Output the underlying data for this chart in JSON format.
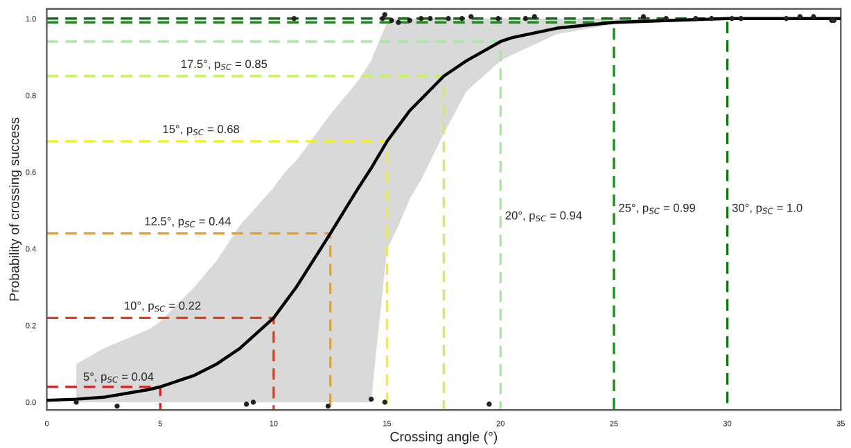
{
  "chart_data": {
    "type": "line",
    "xlabel": "Crossing angle (°)",
    "ylabel": "Probability of crossing success",
    "xlim": [
      0,
      35
    ],
    "ylim": [
      -0.02,
      1.025
    ],
    "xticks": [
      0,
      5,
      10,
      15,
      20,
      25,
      30,
      35
    ],
    "yticks": [
      {
        "value": 0,
        "label": "0.0"
      },
      {
        "value": 0.2,
        "label": "0.2"
      },
      {
        "value": 0.4,
        "label": "0.4"
      },
      {
        "value": 0.6,
        "label": "0.6"
      },
      {
        "value": 0.8,
        "label": "0.8"
      },
      {
        "value": 1,
        "label": "1.0"
      }
    ],
    "grid": false,
    "legend": false,
    "series": [
      {
        "color": "#d42020",
        "line_style": "dashed",
        "x": [
          0,
          5,
          5
        ],
        "values": [
          0.04,
          0.04,
          -0.02
        ]
      },
      {
        "color": "#e0401a",
        "line_style": "dashed",
        "x": [
          0,
          10,
          10
        ],
        "values": [
          0.22,
          0.22,
          -0.02
        ]
      },
      {
        "color": "#e8a020",
        "line_style": "dashed",
        "x": [
          0,
          12.5,
          12.5
        ],
        "values": [
          0.44,
          0.44,
          -0.02
        ]
      },
      {
        "color": "#f0f020",
        "line_style": "dashed",
        "x": [
          0,
          15,
          15
        ],
        "values": [
          0.68,
          0.68,
          -0.02
        ]
      },
      {
        "color": "#c8f060",
        "line_style": "dashed",
        "x": [
          0,
          17.5,
          17.5
        ],
        "values": [
          0.85,
          0.85,
          -0.02
        ]
      },
      {
        "color": "#a8e8a0",
        "line_style": "dashed",
        "x": [
          0,
          20,
          20
        ],
        "values": [
          0.94,
          0.94,
          -0.02
        ]
      },
      {
        "color": "#1a8a1a",
        "line_style": "dashed",
        "x": [
          0,
          25,
          25
        ],
        "values": [
          0.99,
          0.99,
          -0.02
        ]
      },
      {
        "color": "#107010",
        "line_style": "dashed",
        "x": [
          0,
          30,
          30
        ],
        "values": [
          1.0,
          1.0,
          -0.02
        ]
      },
      {
        "color": "#000000",
        "line_style": "solid",
        "x": [
          0,
          1.3,
          2.5,
          4.5,
          5,
          6.5,
          7.5,
          8.5,
          10,
          10.5,
          11,
          12.5,
          13.75,
          14.3,
          14.5,
          15,
          15.5,
          16,
          16.5,
          17.5,
          18.5,
          20,
          20.5,
          22.5,
          25,
          27.5,
          30,
          35
        ],
        "values": [
          0.005,
          0.008,
          0.013,
          0.033,
          0.04,
          0.07,
          0.1,
          0.14,
          0.22,
          0.26,
          0.3,
          0.44,
          0.56,
          0.61,
          0.63,
          0.68,
          0.72,
          0.76,
          0.79,
          0.85,
          0.89,
          0.94,
          0.95,
          0.975,
          0.99,
          0.995,
          1.0,
          1.0
        ],
        "lower": [
          null,
          0,
          0,
          0,
          0,
          0,
          0,
          0,
          0,
          0,
          0,
          0,
          0,
          0,
          0.12,
          0.4,
          0.46,
          0.53,
          0.58,
          0.7,
          0.81,
          0.89,
          0.905,
          0.96,
          0.985,
          0.992,
          0.996,
          1.0
        ],
        "upper": [
          null,
          0.1,
          0.14,
          0.19,
          0.21,
          0.3,
          0.37,
          0.46,
          0.56,
          0.6,
          0.63,
          0.75,
          0.84,
          0.89,
          0.92,
          0.99,
          1.0,
          1.0,
          1.0,
          1.0,
          1.0,
          1.0,
          1.0,
          1.0,
          1.0,
          1.0,
          1.0,
          1.0
        ]
      },
      {
        "type": "scatter",
        "color": "#222222",
        "marker": "circle",
        "x": [
          1.3,
          3.1,
          8.8,
          9.1,
          12.4,
          14.3,
          14.9,
          19.5,
          10.9,
          14.8,
          14.9,
          15.2,
          15.5,
          16.0,
          16.5,
          16.9,
          17.7,
          18.3,
          18.7,
          19.9,
          21.1,
          21.5,
          26.3,
          27.3,
          28.6,
          29.3,
          30.2,
          30.6,
          32.6,
          33.2,
          33.8,
          34.6,
          34.7
        ],
        "values": [
          0.0,
          -0.01,
          -0.005,
          0.0,
          -0.01,
          0.008,
          0.0,
          -0.005,
          1.0,
          1.0,
          1.01,
          0.995,
          0.99,
          0.995,
          1.0,
          1.0,
          1.0,
          1.0,
          1.005,
          1.0,
          1.0,
          1.005,
          1.005,
          1.0,
          1.0,
          1.0,
          1.0,
          1.0,
          1.0,
          1.005,
          1.005,
          0.995,
          0.995
        ]
      }
    ],
    "annotations": [
      {
        "text": "5°, p$_{SC}$ = 0.04",
        "x": 1.6,
        "y": 0.05
      },
      {
        "text": "10°, p$_{SC}$ = 0.22",
        "x": 3.4,
        "y": 0.235
      },
      {
        "text": "12.5°, p$_{SC}$ = 0.44",
        "x": 4.3,
        "y": 0.455
      },
      {
        "text": "15°, p$_{SC}$ = 0.68",
        "x": 5.1,
        "y": 0.695
      },
      {
        "text": "17.5°, p$_{SC}$ = 0.85",
        "x": 5.9,
        "y": 0.865
      },
      {
        "text": "20°, p$_{SC}$ = 0.94",
        "x": 20.2,
        "y": 0.47
      },
      {
        "text": "25°, p$_{SC}$ = 0.99",
        "x": 25.2,
        "y": 0.49
      },
      {
        "text": "30°, p$_{SC}$ = 1.0",
        "x": 30.2,
        "y": 0.49
      }
    ]
  }
}
